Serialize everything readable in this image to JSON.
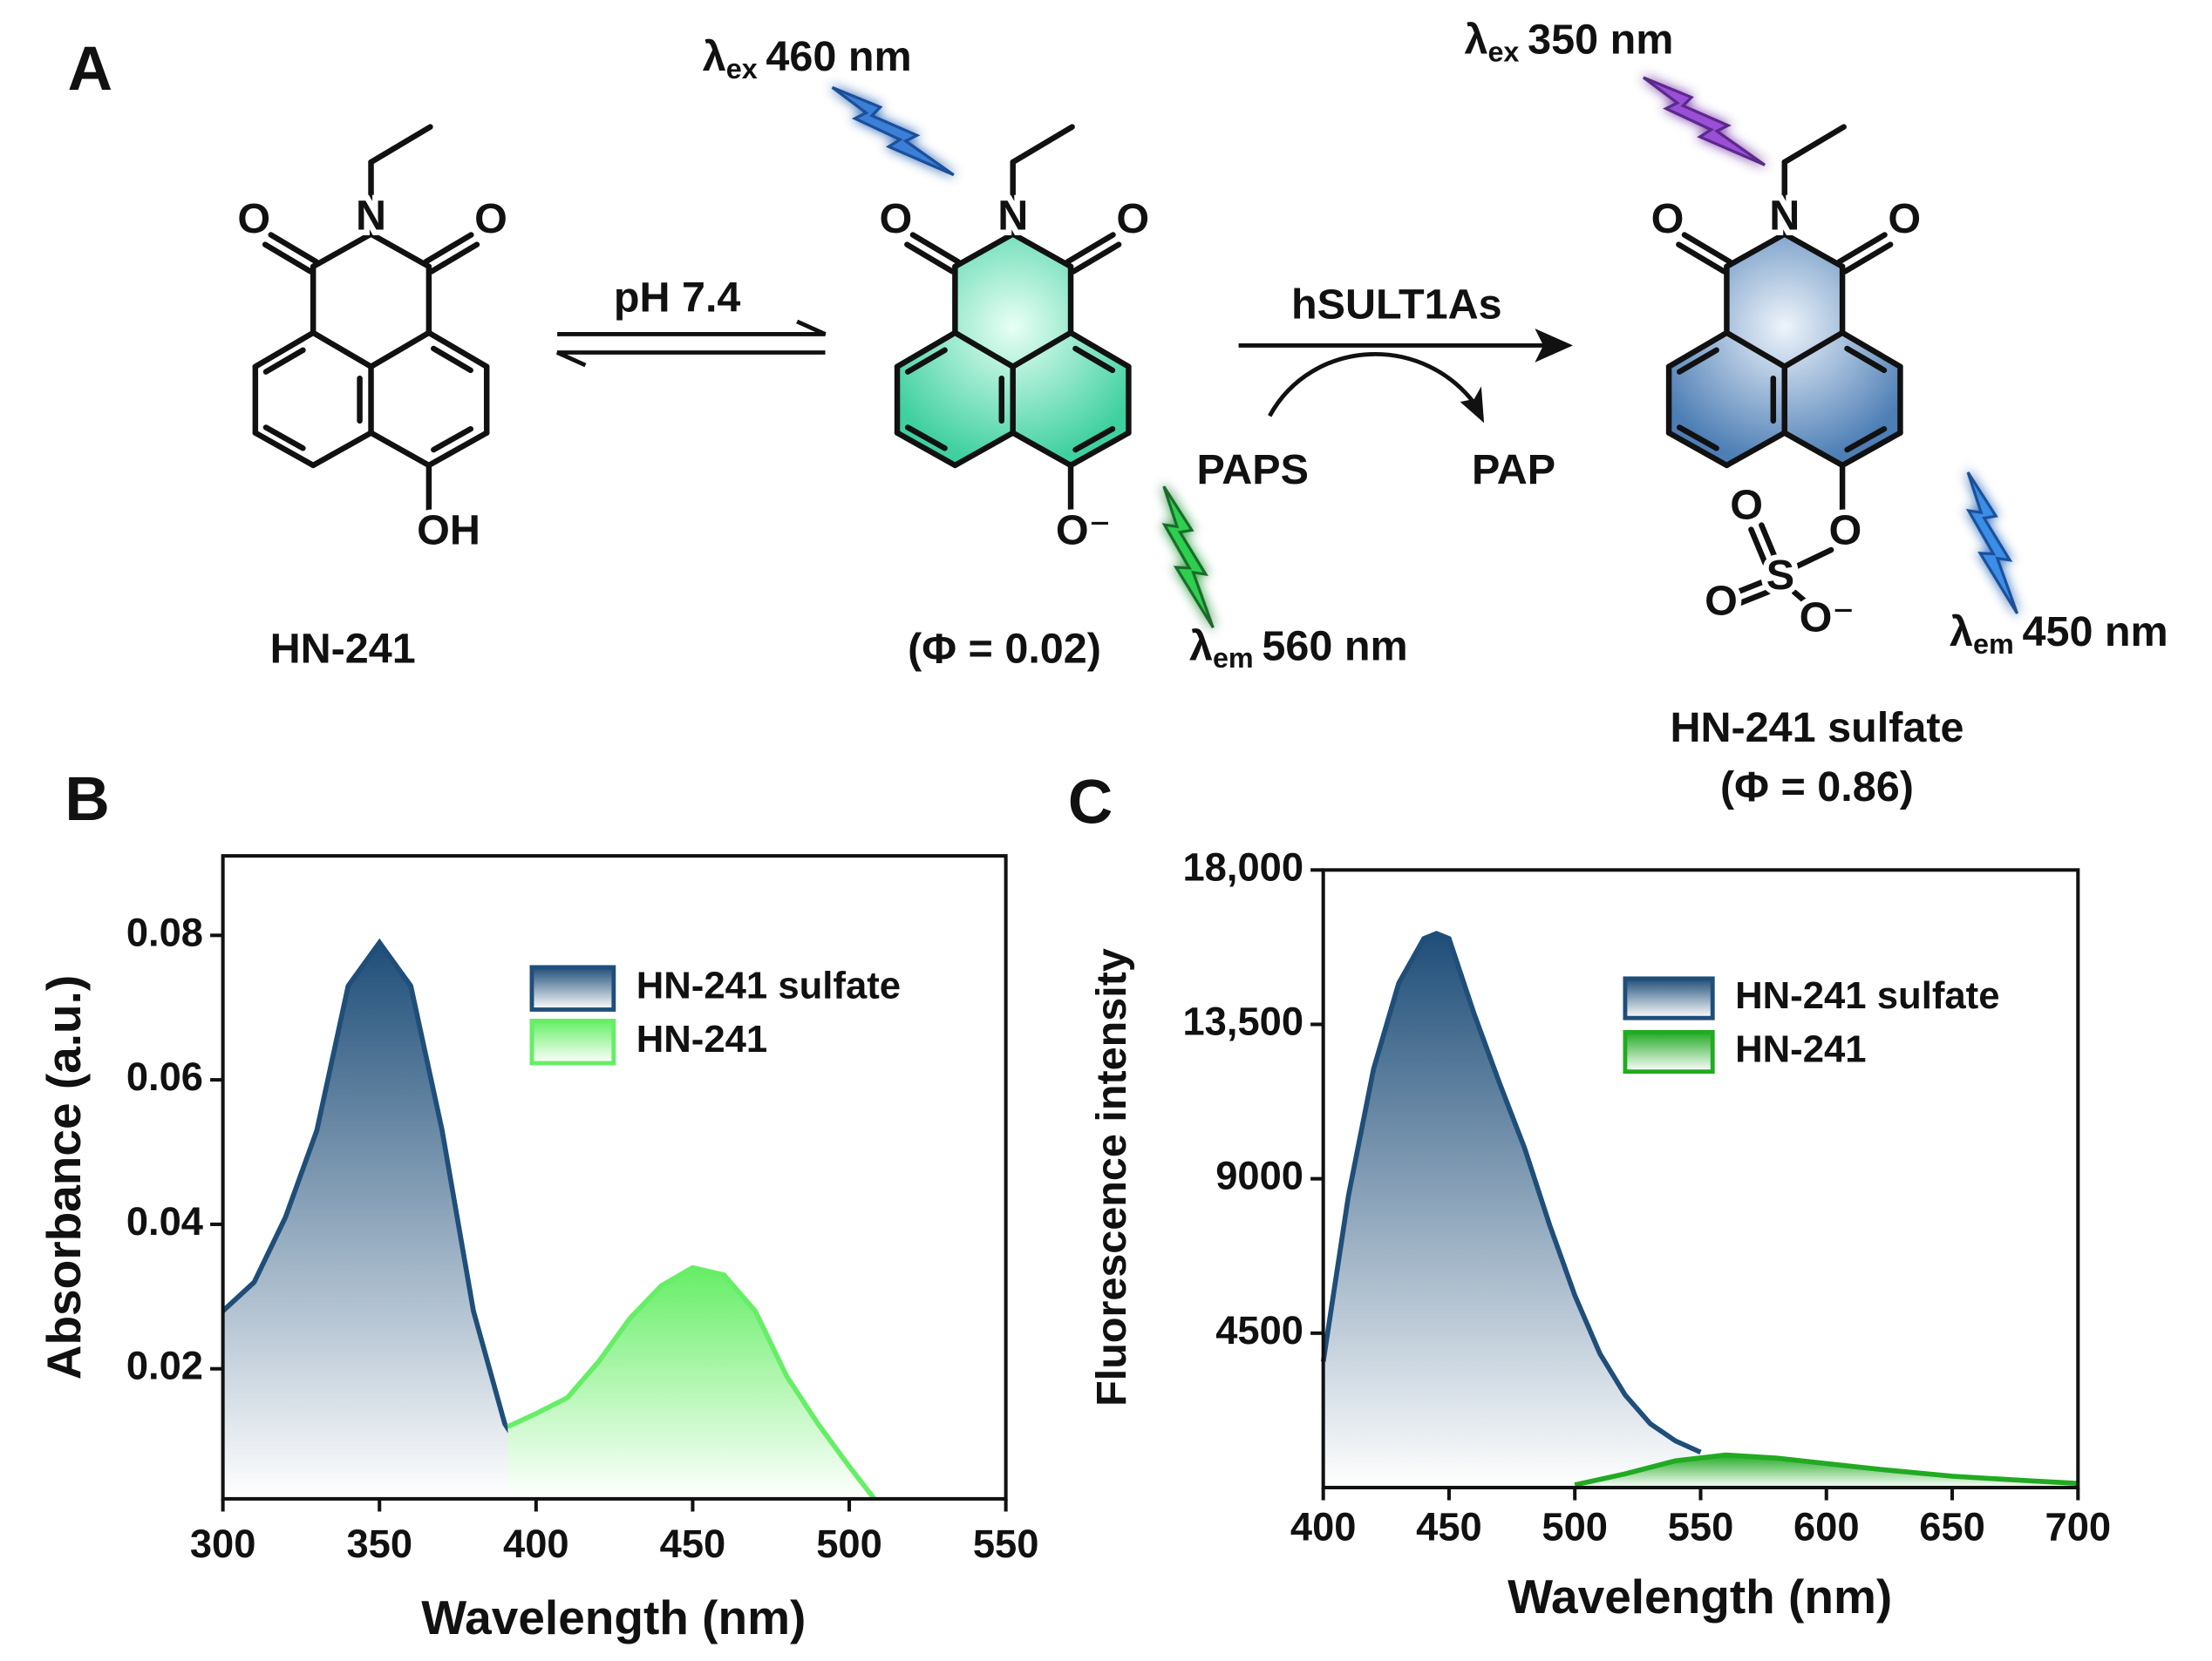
{
  "panel_a": {
    "label": "A",
    "excitation": [
      {
        "symbol": "λ",
        "subscript": "ex",
        "value": "460 nm"
      },
      {
        "symbol": "λ",
        "subscript": "ex",
        "value": "350 nm"
      }
    ],
    "emission": [
      {
        "symbol": "λ",
        "subscript": "em",
        "value": "560 nm"
      },
      {
        "symbol": "λ",
        "subscript": "em",
        "value": "450 nm"
      }
    ],
    "arrows": {
      "equilibrium": "pH 7.4",
      "enzyme": "hSULT1As",
      "cofactor": "PAPS",
      "product": "PAP"
    },
    "compounds": [
      {
        "name": "HN-241",
        "atoms": [
          "O",
          "N",
          "O",
          "OH"
        ]
      },
      {
        "quantum_yield": "(Φ = 0.02)",
        "atoms": [
          "O",
          "N",
          "O",
          "O⁻"
        ]
      },
      {
        "name": "HN-241 sulfate",
        "quantum_yield": "(Φ = 0.86)",
        "atoms": [
          "O",
          "N",
          "O",
          "O",
          "S",
          "O",
          "O",
          "O⁻"
        ]
      }
    ]
  },
  "chart_data": [
    {
      "type": "area",
      "panel_label": "B",
      "x_label": "Wavelength (nm)",
      "y_label": "Absorbance (a.u.)",
      "xlim": [
        300,
        550
      ],
      "xticks": [
        300,
        350,
        400,
        450,
        500,
        550
      ],
      "ylim": [
        0.002,
        0.091
      ],
      "yticks": [
        0.02,
        0.04,
        0.06,
        0.08
      ],
      "series": [
        {
          "name": "HN-241 sulfate",
          "color": "#1f4e79",
          "x": [
            300,
            310,
            320,
            330,
            340,
            350,
            360,
            370,
            380,
            390,
            400,
            410,
            420,
            440,
            460,
            480
          ],
          "values": [
            0.028,
            0.032,
            0.041,
            0.053,
            0.073,
            0.079,
            0.073,
            0.053,
            0.028,
            0.0124,
            0.0056,
            0.0036,
            0.0027,
            0.0025,
            0.0027,
            0.0025
          ]
        },
        {
          "name": "HN-241",
          "color": "#66ee66",
          "x": [
            391,
            400,
            410,
            420,
            430,
            440,
            450,
            460,
            470,
            480,
            490,
            500,
            508
          ],
          "values": [
            0.012,
            0.0138,
            0.016,
            0.021,
            0.027,
            0.0315,
            0.034,
            0.033,
            0.028,
            0.019,
            0.0124,
            0.0065,
            0.002
          ]
        }
      ]
    },
    {
      "type": "area",
      "panel_label": "C",
      "x_label": "Wavelength (nm)",
      "y_label": "Fluorescence intensity",
      "xlim": [
        400,
        700
      ],
      "xticks": [
        400,
        450,
        500,
        550,
        600,
        650,
        700
      ],
      "ylim": [
        0,
        18000
      ],
      "yticks": [
        4500,
        9000,
        {
          "value": 13500,
          "label": "13,500"
        },
        {
          "value": 18000,
          "label": "18,000"
        }
      ],
      "series": [
        {
          "name": "HN-241 sulfate",
          "color": "#1f4e79",
          "x": [
            400,
            410,
            420,
            430,
            440,
            445,
            450,
            460,
            470,
            480,
            490,
            500,
            510,
            520,
            530,
            540,
            550
          ],
          "values": [
            3670,
            8500,
            12200,
            14700,
            16000,
            16150,
            16000,
            13800,
            11800,
            9900,
            7650,
            5600,
            3900,
            2700,
            1860,
            1360,
            1030
          ]
        },
        {
          "name": "HN-241",
          "color": "#22aa22",
          "x": [
            500,
            520,
            540,
            560,
            580,
            600,
            620,
            650,
            680,
            700
          ],
          "values": [
            80,
            400,
            780,
            950,
            860,
            700,
            540,
            330,
            200,
            120
          ]
        }
      ]
    }
  ]
}
